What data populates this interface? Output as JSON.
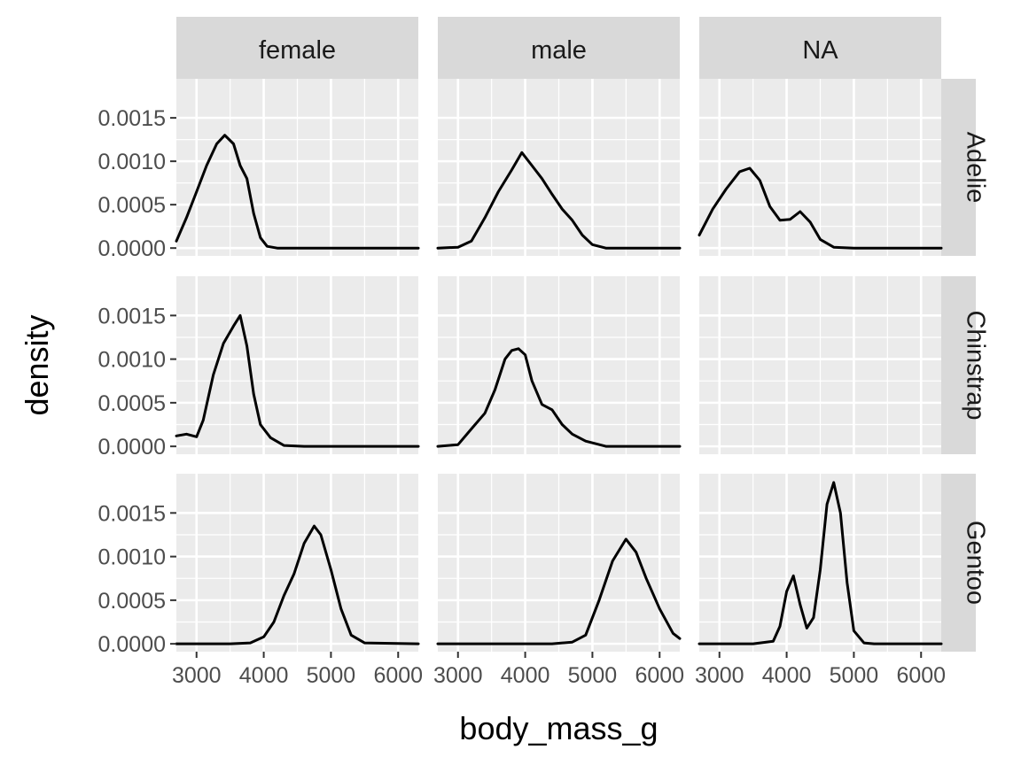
{
  "chart_data": {
    "type": "line",
    "xlabel": "body_mass_g",
    "ylabel": "density",
    "xlim": [
      2700,
      6300
    ],
    "ylim": [
      -9e-05,
      0.00195
    ],
    "x_ticks": [
      3000,
      4000,
      5000,
      6000
    ],
    "x_tick_labels": [
      "3000",
      "4000",
      "5000",
      "6000"
    ],
    "y_ticks": [
      0,
      0.0005,
      0.001,
      0.0015
    ],
    "y_tick_labels": [
      "0.0000",
      "0.0005",
      "0.0010",
      "0.0015"
    ],
    "columns": [
      "female",
      "male",
      "NA"
    ],
    "rows": [
      "Adelie",
      "Chinstrap",
      "Gentoo"
    ],
    "panels": [
      {
        "column": "female",
        "row": "Adelie",
        "x": [
          2700,
          2850,
          3000,
          3150,
          3300,
          3420,
          3550,
          3650,
          3750,
          3850,
          3950,
          4050,
          4200,
          4500,
          5000,
          6300
        ],
        "y": [
          8e-05,
          0.00035,
          0.00065,
          0.00095,
          0.0012,
          0.0013,
          0.0012,
          0.00095,
          0.0008,
          0.0004,
          0.00012,
          2e-05,
          0.0,
          0.0,
          0.0,
          0.0
        ]
      },
      {
        "column": "male",
        "row": "Adelie",
        "x": [
          2700,
          3000,
          3200,
          3400,
          3600,
          3800,
          3950,
          4100,
          4250,
          4400,
          4550,
          4700,
          4850,
          5000,
          5200,
          6300
        ],
        "y": [
          0.0,
          1e-05,
          8e-05,
          0.00035,
          0.00065,
          0.0009,
          0.0011,
          0.00095,
          0.0008,
          0.00062,
          0.00045,
          0.00032,
          0.00015,
          4e-05,
          0.0,
          0.0
        ]
      },
      {
        "column": "NA",
        "row": "Adelie",
        "x": [
          2700,
          2900,
          3100,
          3300,
          3450,
          3600,
          3750,
          3900,
          4050,
          4200,
          4350,
          4500,
          4700,
          5000,
          6300
        ],
        "y": [
          0.00015,
          0.00045,
          0.00068,
          0.00088,
          0.00092,
          0.00078,
          0.00048,
          0.00032,
          0.00033,
          0.00042,
          0.0003,
          0.0001,
          1e-05,
          0.0,
          0.0
        ]
      },
      {
        "column": "female",
        "row": "Chinstrap",
        "x": [
          2700,
          2850,
          3000,
          3100,
          3250,
          3400,
          3550,
          3650,
          3750,
          3850,
          3950,
          4100,
          4300,
          4600,
          6300
        ],
        "y": [
          0.00012,
          0.00014,
          0.00011,
          0.0003,
          0.00082,
          0.00118,
          0.00138,
          0.0015,
          0.00115,
          0.0006,
          0.00025,
          0.0001,
          1e-05,
          0.0,
          0.0
        ]
      },
      {
        "column": "male",
        "row": "Chinstrap",
        "x": [
          2700,
          3000,
          3200,
          3400,
          3550,
          3700,
          3800,
          3900,
          4000,
          4100,
          4250,
          4400,
          4550,
          4700,
          4900,
          5200,
          6300
        ],
        "y": [
          0.0,
          2e-05,
          0.0002,
          0.00038,
          0.00065,
          0.001,
          0.0011,
          0.00112,
          0.00105,
          0.00075,
          0.00048,
          0.00042,
          0.00025,
          0.00014,
          6e-05,
          0.0,
          0.0
        ]
      },
      {
        "column": "NA",
        "row": "Chinstrap",
        "x": [],
        "y": []
      },
      {
        "column": "female",
        "row": "Gentoo",
        "x": [
          2700,
          3500,
          3800,
          4000,
          4150,
          4300,
          4450,
          4600,
          4750,
          4850,
          5000,
          5150,
          5300,
          5500,
          6300
        ],
        "y": [
          0.0,
          0.0,
          1e-05,
          8e-05,
          0.00025,
          0.00055,
          0.0008,
          0.00115,
          0.00135,
          0.00125,
          0.00085,
          0.0004,
          0.0001,
          1e-05,
          0.0
        ]
      },
      {
        "column": "male",
        "row": "Gentoo",
        "x": [
          2700,
          4400,
          4700,
          4900,
          5100,
          5300,
          5500,
          5650,
          5800,
          6000,
          6200,
          6300
        ],
        "y": [
          0.0,
          0.0,
          2e-05,
          0.0001,
          0.0005,
          0.00095,
          0.0012,
          0.00105,
          0.00075,
          0.0004,
          0.00012,
          6e-05
        ]
      },
      {
        "column": "NA",
        "row": "Gentoo",
        "x": [
          2700,
          3500,
          3800,
          3900,
          4000,
          4100,
          4200,
          4300,
          4400,
          4500,
          4600,
          4700,
          4800,
          4900,
          5000,
          5150,
          5300,
          6300
        ],
        "y": [
          0.0,
          0.0,
          3e-05,
          0.0002,
          0.0006,
          0.00078,
          0.00045,
          0.00018,
          0.0003,
          0.00085,
          0.0016,
          0.00185,
          0.0015,
          0.0007,
          0.00015,
          1e-05,
          0.0,
          0.0
        ]
      }
    ]
  }
}
